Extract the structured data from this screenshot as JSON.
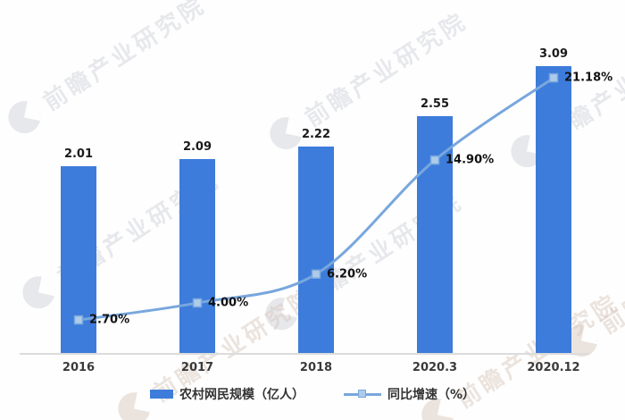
{
  "watermark": {
    "text": "前瞻产业研究院"
  },
  "legend": {
    "bar_label": "农村网民规模（亿人）",
    "line_label": "同比增速（%）"
  },
  "chart_data": {
    "type": "bar",
    "subtype": "bar-line-combo",
    "title": "",
    "xlabel": "",
    "ylabel": "",
    "grid": false,
    "legend_position": "bottom",
    "categories": [
      "2016",
      "2017",
      "2018",
      "2020.3",
      "2020.12"
    ],
    "series": [
      {
        "name": "农村网民规模（亿人）",
        "type": "bar",
        "values": [
          2.01,
          2.09,
          2.22,
          2.55,
          3.09
        ],
        "labels": [
          "2.01",
          "2.09",
          "2.22",
          "2.55",
          "3.09"
        ],
        "color": "#3D7CDB"
      },
      {
        "name": "同比增速（%）",
        "type": "line",
        "values": [
          2.7,
          4.0,
          6.2,
          14.9,
          21.18
        ],
        "labels": [
          "2.70%",
          "4.00%",
          "6.20%",
          "14.90%",
          "21.18%"
        ],
        "color": "#78A7DD"
      }
    ],
    "bar_axis_range": [
      0,
      3.8
    ],
    "line_axis_range": [
      0,
      27
    ]
  },
  "colors": {
    "bar": "#3D7CDB",
    "line": "#78A7DD",
    "marker_fill": "#AECBEA",
    "marker_stroke": "#79A8DE",
    "axis": "#DCDCDC",
    "label_text": "#1a1a1a",
    "watermark_gray": "#C9CCD4",
    "watermark_warm": "#D9C9BE"
  }
}
